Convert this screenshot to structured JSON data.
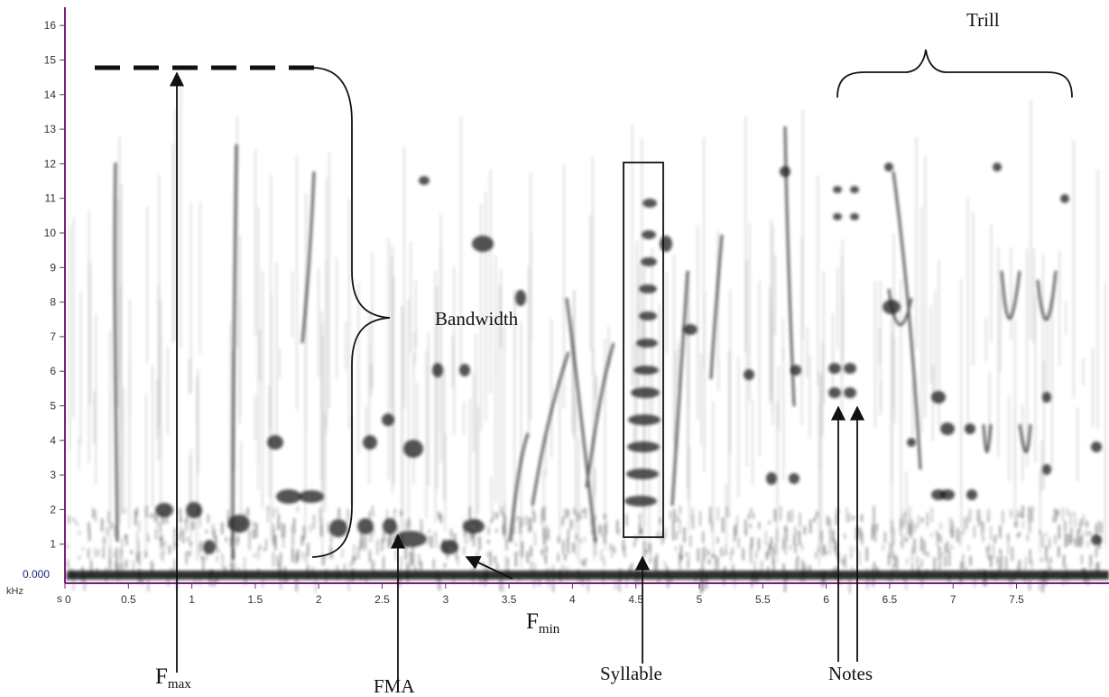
{
  "figure": {
    "y_axis": {
      "unit": "kHz",
      "zero_label": "0.000",
      "ticks": [
        "1",
        "2",
        "3",
        "4",
        "5",
        "6",
        "7",
        "8",
        "9",
        "10",
        "11",
        "12",
        "13",
        "14",
        "15",
        "16"
      ],
      "range": [
        0,
        16.5
      ]
    },
    "x_axis": {
      "unit": "s",
      "ticks": [
        "0",
        "0.5",
        "1",
        "1.5",
        "2",
        "2.5",
        "3",
        "3.5",
        "4",
        "4.5",
        "5",
        "5.5",
        "6",
        "6.5",
        "7",
        "7.5"
      ],
      "range": [
        0,
        7.7
      ]
    },
    "colors": {
      "ink": "#111111",
      "axis": "#7b1f7a",
      "tick_text": "#333333"
    },
    "annotations": {
      "fmax": {
        "main": "F",
        "sub": "max"
      },
      "fmin": {
        "main": "F",
        "sub": "min"
      },
      "fma": "FMA",
      "syllable": "Syllable",
      "notes": "Notes",
      "trill": "Trill",
      "bandwidth": "Bandwidth"
    }
  }
}
